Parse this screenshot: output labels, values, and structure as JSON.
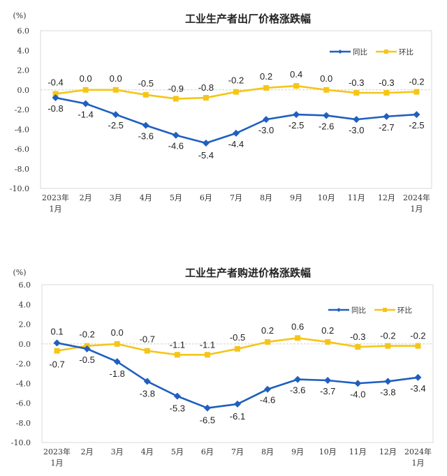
{
  "chart_data": [
    {
      "type": "line",
      "title": "工业生产者出厂价格涨跌幅",
      "ylabel": "(%)",
      "xlabel": "",
      "ylim": [
        -10.0,
        6.0
      ],
      "yticks": [
        "6.0",
        "4.0",
        "2.0",
        "0.0",
        "-2.0",
        "-4.0",
        "-6.0",
        "-8.0",
        "-10.0"
      ],
      "ytick_values": [
        6,
        4,
        2,
        0,
        -2,
        -4,
        -6,
        -8,
        -10
      ],
      "categories": [
        [
          "2023年",
          "1月"
        ],
        [
          "2月"
        ],
        [
          "3月"
        ],
        [
          "4月"
        ],
        [
          "5月"
        ],
        [
          "6月"
        ],
        [
          "7月"
        ],
        [
          "8月"
        ],
        [
          "9月"
        ],
        [
          "10月"
        ],
        [
          "11月"
        ],
        [
          "12月"
        ],
        [
          "2024年",
          "1月"
        ]
      ],
      "legend_position": "top-right",
      "grid": false,
      "series": [
        {
          "name": "同比",
          "color": "#1f5fbf",
          "marker": "diamond",
          "values": [
            -0.8,
            -1.4,
            -2.5,
            -3.6,
            -4.6,
            -5.4,
            -4.4,
            -3.0,
            -2.5,
            -2.6,
            -3.0,
            -2.7,
            -2.5
          ],
          "labels": [
            "-0.8",
            "-1.4",
            "-2.5",
            "-3.6",
            "-4.6",
            "-5.4",
            "-4.4",
            "-3.0",
            "-2.5",
            "-2.6",
            "-3.0",
            "-2.7",
            "-2.5"
          ]
        },
        {
          "name": "环比",
          "color": "#f5c518",
          "marker": "square",
          "values": [
            -0.4,
            0.0,
            0.0,
            -0.5,
            -0.9,
            -0.8,
            -0.2,
            0.2,
            0.4,
            0.0,
            -0.3,
            -0.3,
            -0.2
          ],
          "labels": [
            "-0.4",
            "0.0",
            "0.0",
            "-0.5",
            "-0.9",
            "-0.8",
            "-0.2",
            "0.2",
            "0.4",
            "0.0",
            "-0.3",
            "-0.3",
            "-0.2"
          ]
        }
      ]
    },
    {
      "type": "line",
      "title": "工业生产者购进价格涨跌幅",
      "ylabel": "(%)",
      "xlabel": "",
      "ylim": [
        -10.0,
        6.0
      ],
      "yticks": [
        "6.0",
        "4.0",
        "2.0",
        "0.0",
        "-2.0",
        "-4.0",
        "-6.0",
        "-8.0",
        "-10.0"
      ],
      "ytick_values": [
        6,
        4,
        2,
        0,
        -2,
        -4,
        -6,
        -8,
        -10
      ],
      "categories": [
        [
          "2023年",
          "1月"
        ],
        [
          "2月"
        ],
        [
          "3月"
        ],
        [
          "4月"
        ],
        [
          "5月"
        ],
        [
          "6月"
        ],
        [
          "7月"
        ],
        [
          "8月"
        ],
        [
          "9月"
        ],
        [
          "10月"
        ],
        [
          "11月"
        ],
        [
          "12月"
        ],
        [
          "2024年",
          "1月"
        ]
      ],
      "legend_position": "top-right",
      "grid": false,
      "series": [
        {
          "name": "同比",
          "color": "#1f5fbf",
          "marker": "diamond",
          "values": [
            0.1,
            -0.5,
            -1.8,
            -3.8,
            -5.3,
            -6.5,
            -6.1,
            -4.6,
            -3.6,
            -3.7,
            -4.0,
            -3.8,
            -3.4
          ],
          "labels": [
            "0.1",
            "-0.5",
            "-1.8",
            "-3.8",
            "-5.3",
            "-6.5",
            "-6.1",
            "-4.6",
            "-3.6",
            "-3.7",
            "-4.0",
            "-3.8",
            "-3.4"
          ]
        },
        {
          "name": "环比",
          "color": "#f5c518",
          "marker": "square",
          "values": [
            -0.7,
            -0.2,
            0.0,
            -0.7,
            -1.1,
            -1.1,
            -0.5,
            0.2,
            0.6,
            0.2,
            -0.3,
            -0.2,
            -0.2
          ],
          "labels": [
            "-0.7",
            "-0.2",
            "0.0",
            "-0.7",
            "-1.1",
            "-1.1",
            "-0.5",
            "0.2",
            "0.6",
            "0.2",
            "-0.3",
            "-0.2",
            "-0.2"
          ]
        }
      ]
    }
  ]
}
